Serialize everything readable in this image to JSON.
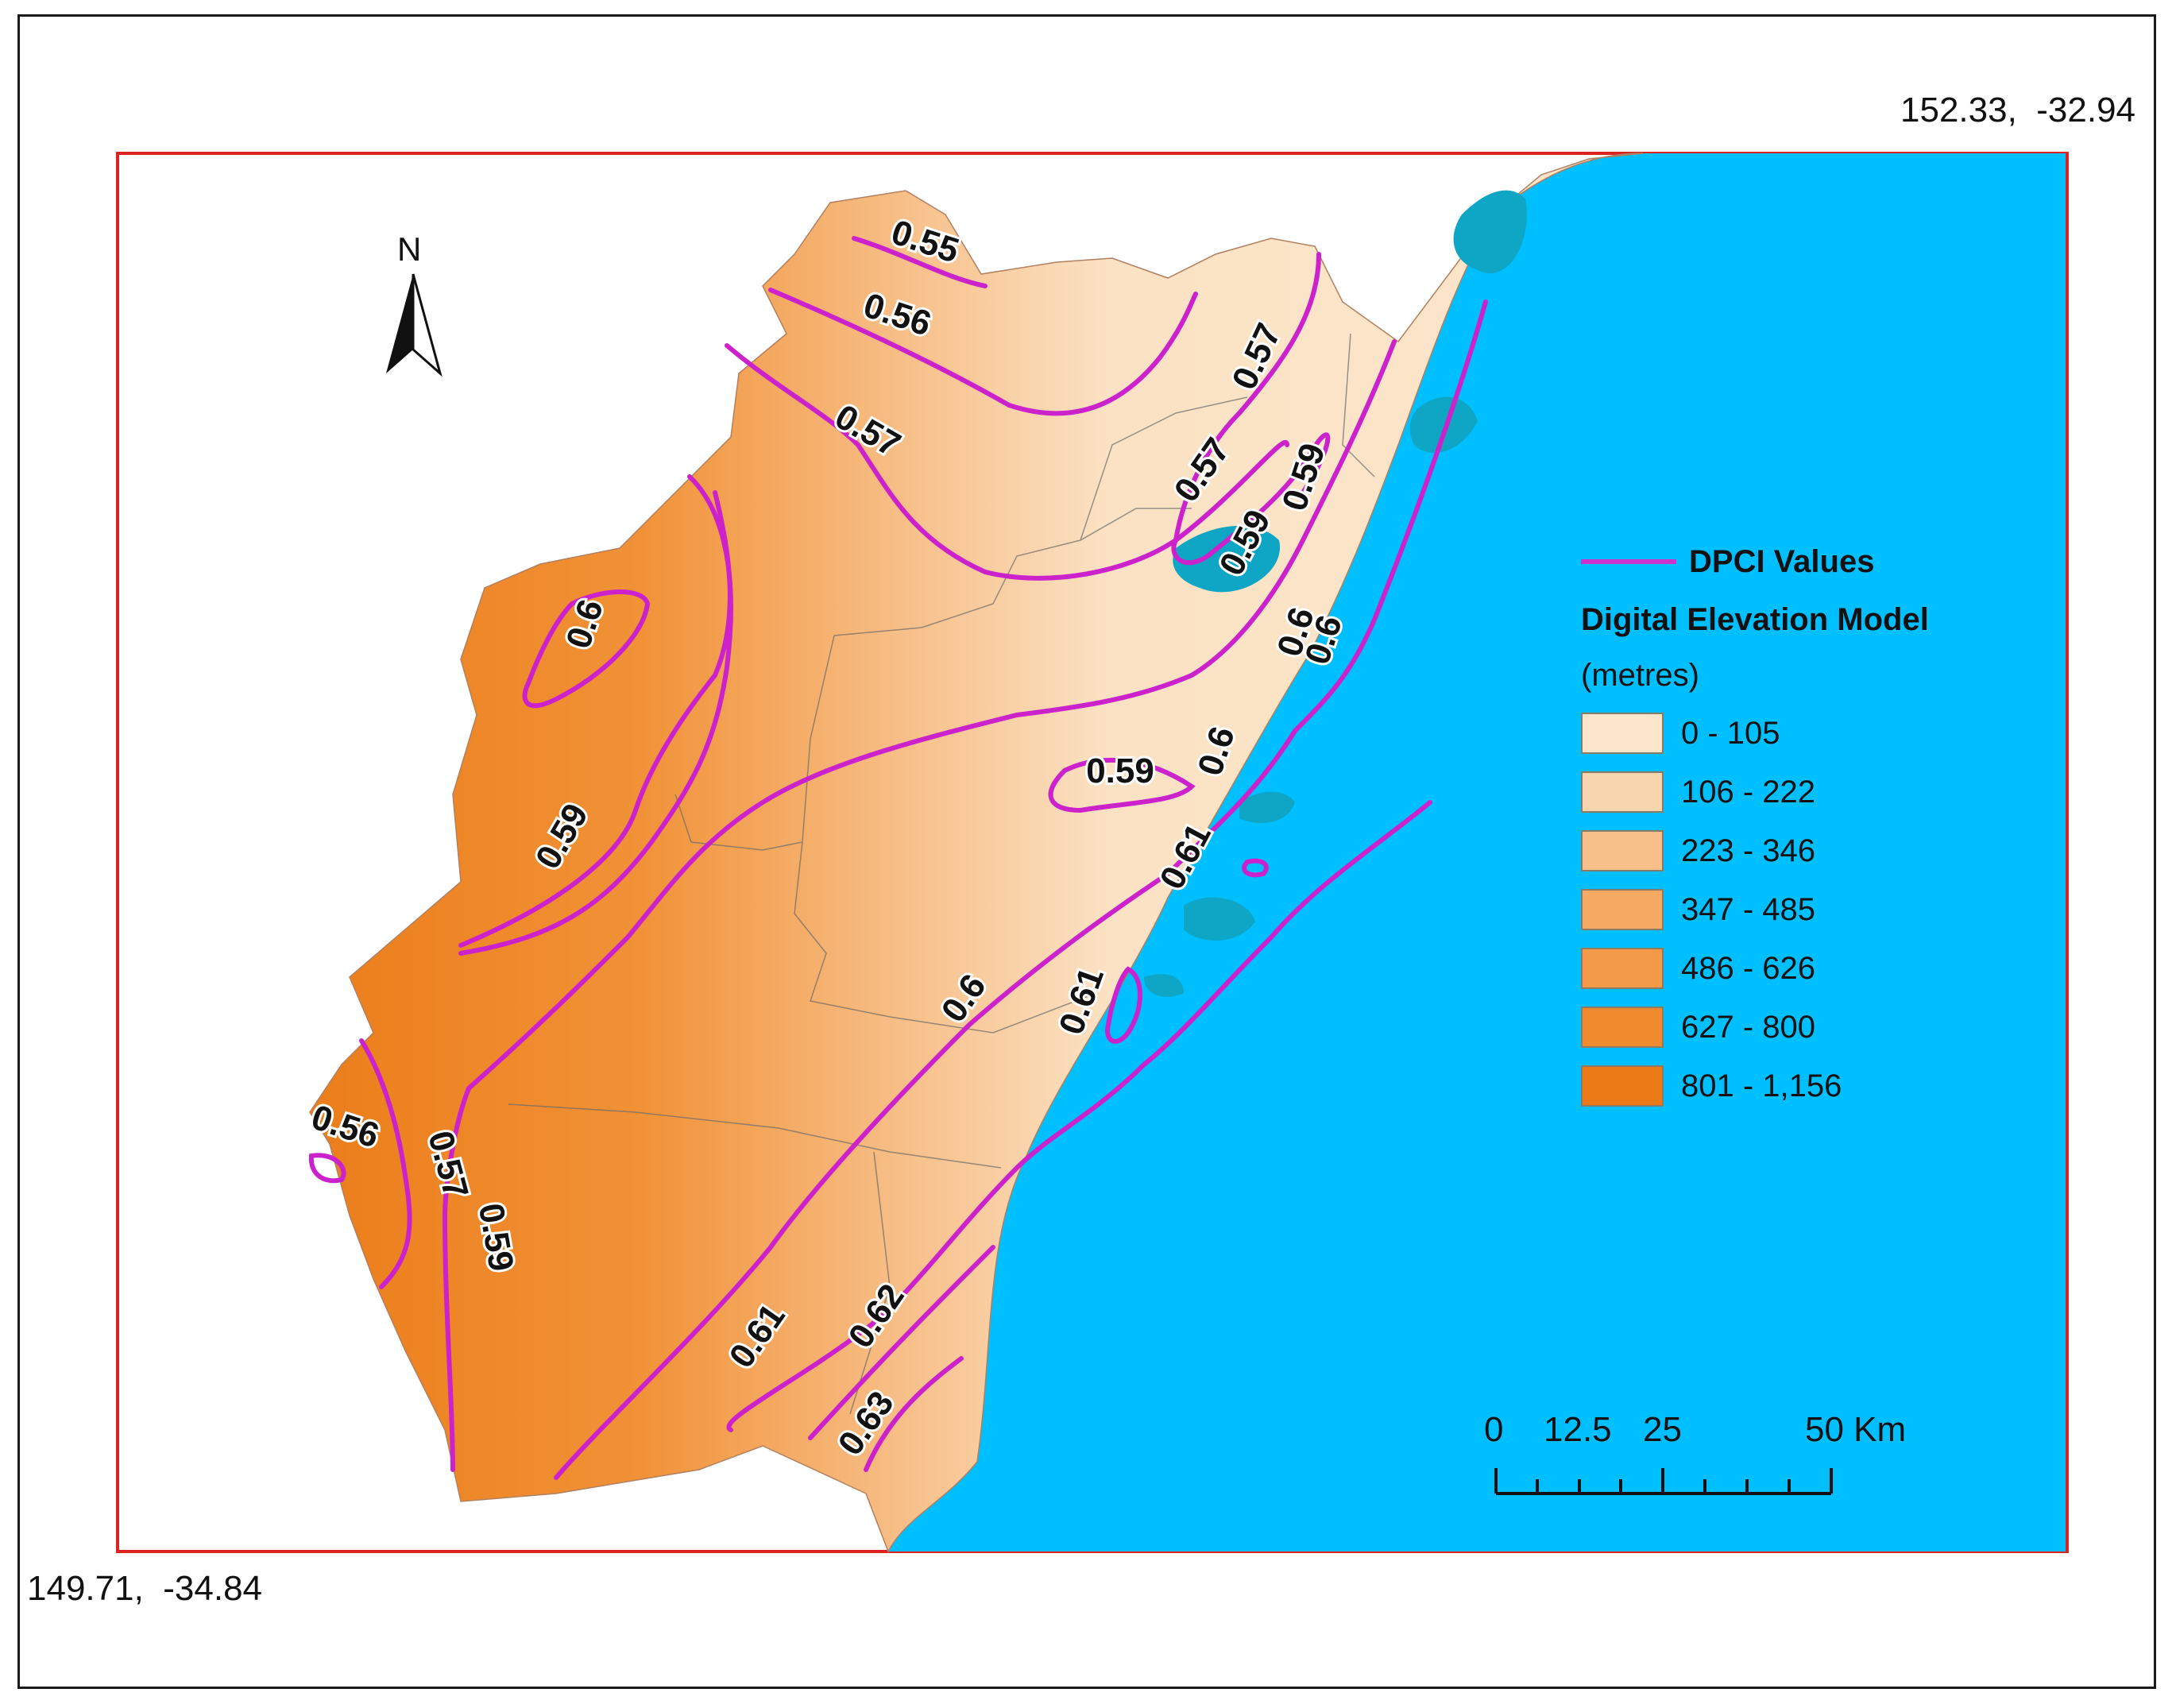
{
  "corners": {
    "northeast": "152.33,  -32.94",
    "southwest": "149.71,  -34.84"
  },
  "north_arrow": {
    "label": "N",
    "icon": "north-arrow-icon"
  },
  "legend": {
    "line_label": "DPCI Values",
    "dem_title": "Digital Elevation Model",
    "dem_unit": "(metres)",
    "classes": [
      {
        "label": "0 - 105",
        "color": "#fbe6cc"
      },
      {
        "label": "106 - 222",
        "color": "#f9d5ad"
      },
      {
        "label": "223 - 346",
        "color": "#f7c08a"
      },
      {
        "label": "347 - 485",
        "color": "#f5aa64"
      },
      {
        "label": "486 - 626",
        "color": "#f39a48"
      },
      {
        "label": "627 - 800",
        "color": "#ef8a2e"
      },
      {
        "label": "801 - 1,156",
        "color": "#eb7a16"
      }
    ]
  },
  "scalebar": {
    "ticks": [
      "0",
      "12.5",
      "25",
      "50 Km"
    ]
  },
  "isolines": {
    "color": "#cc22cc",
    "labels": [
      "0.55",
      "0.56",
      "0.57",
      "0.57",
      "0.57",
      "0.59",
      "0.59",
      "0.6",
      "0.6",
      "0.6",
      "0.59",
      "0.59",
      "0.6",
      "0.61",
      "0.6",
      "0.61",
      "0.56",
      "0.57",
      "0.59",
      "0.61",
      "0.62",
      "0.63"
    ]
  },
  "colors": {
    "ocean": "#00bfff",
    "study_area_border": "#dd2222",
    "frame": "#1a1a1a"
  }
}
